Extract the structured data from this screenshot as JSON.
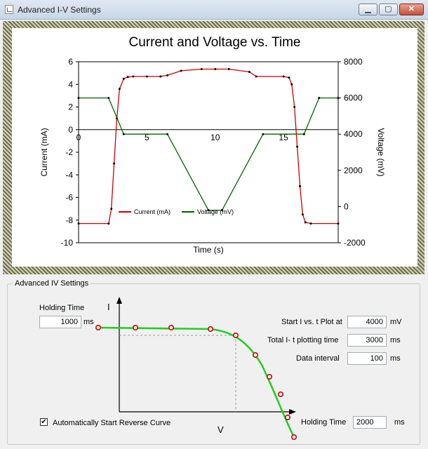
{
  "window": {
    "title": "Advanced I-V Settings",
    "minimize_glyph": "▁",
    "maximize_glyph": "▢",
    "close_glyph": "✕"
  },
  "chart_data": {
    "type": "line",
    "title": "Current and  Voltage vs. Time",
    "xlabel": "Time (s)",
    "ylabel_left": "Current (mA)",
    "ylabel_right": "Voltage (mV)",
    "xlim": [
      0,
      19
    ],
    "ylim_left": [
      -10,
      6
    ],
    "ylim_right": [
      -2000,
      8000
    ],
    "x_ticks": [
      0,
      5,
      10,
      15
    ],
    "y_ticks_left": [
      6,
      4,
      2,
      0,
      -2,
      -4,
      -6,
      -8,
      -10
    ],
    "y_ticks_right": [
      8000,
      6000,
      4000,
      2000,
      0,
      -2000
    ],
    "legend_position": "bottom-left",
    "series": [
      {
        "name": "Current (mA)",
        "axis": "left",
        "color": "#cc0000",
        "x": [
          0,
          2.2,
          2.4,
          2.6,
          2.8,
          3.0,
          3.3,
          3.6,
          4.0,
          5,
          6,
          6.5,
          7.5,
          9,
          10,
          11,
          12.5,
          13,
          15,
          15.4,
          15.6,
          15.8,
          16.0,
          16.2,
          16.4,
          16.6,
          17,
          19
        ],
        "y": [
          -8.3,
          -8.3,
          -7.0,
          -3.0,
          1.0,
          3.6,
          4.5,
          4.65,
          4.7,
          4.7,
          4.7,
          4.8,
          5.2,
          5.35,
          5.35,
          5.35,
          5.1,
          4.7,
          4.7,
          4.6,
          4.0,
          2.0,
          -1.5,
          -5.0,
          -7.5,
          -8.2,
          -8.3,
          -8.3
        ]
      },
      {
        "name": "Voltage (mV)",
        "axis": "right",
        "color": "#006600",
        "x": [
          0,
          2.2,
          3.3,
          6.5,
          9.5,
          10.5,
          13.5,
          16.5,
          17.6,
          19
        ],
        "y": [
          6000,
          6000,
          4000,
          4000,
          -200,
          -200,
          4000,
          4000,
          6000,
          6000
        ]
      }
    ]
  },
  "settings": {
    "group_label": "Advanced IV Settings",
    "holding_time_label": "Holding Time",
    "holding_time_value": "1000",
    "holding_time_unit": "ms",
    "start_plot_label": "Start I vs. t Plot at",
    "start_plot_value": "4000",
    "start_plot_unit": "mV",
    "total_time_label": "Total I- t plotting time",
    "total_time_value": "3000",
    "total_time_unit": "ms",
    "data_interval_label": "Data interval",
    "data_interval_value": "100",
    "data_interval_unit": "ms",
    "auto_reverse_label": "Automatically Start Reverse Curve",
    "auto_reverse_checked": true,
    "check_glyph": "✔",
    "holding_time2_label": "Holding Time",
    "holding_time2_value": "2000",
    "holding_time2_unit": "ms",
    "diagram_y_label": "I",
    "diagram_x_label": "V"
  }
}
